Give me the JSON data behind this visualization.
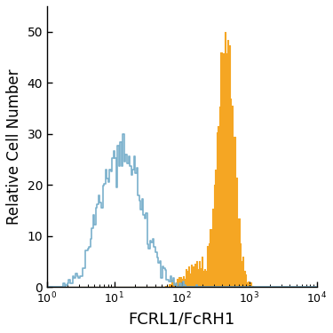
{
  "title": "",
  "xlabel": "FCRL1/FcRH1",
  "ylabel": "Relative Cell Number",
  "xlim": [
    1,
    10000
  ],
  "ylim": [
    0,
    55
  ],
  "yticks": [
    0,
    10,
    20,
    30,
    40,
    50
  ],
  "background_color": "#ffffff",
  "blue_color": "#7ab0cc",
  "orange_color": "#f5a623",
  "xlabel_fontsize": 13,
  "ylabel_fontsize": 12
}
